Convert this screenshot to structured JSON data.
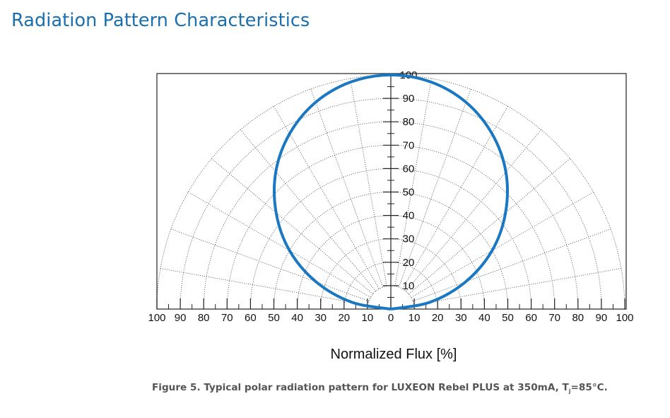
{
  "page": {
    "heading": "Radiation Pattern Characteristics",
    "caption_main": "Figure 5. Typical polar radiation pattern for LUXEON Rebel PLUS at 350mA, T",
    "caption_sub": "j",
    "caption_end": "=85°C."
  },
  "chart_data": {
    "type": "polar",
    "xlabel": "Normalized Flux [%]",
    "radial_range": [
      0,
      100
    ],
    "radial_ticks": [
      "10",
      "20",
      "30",
      "40",
      "50",
      "60",
      "70",
      "80",
      "90",
      "100"
    ],
    "x_ticks": [
      "100",
      "90",
      "80",
      "70",
      "60",
      "50",
      "40",
      "30",
      "20",
      "10",
      "0",
      "10",
      "20",
      "30",
      "40",
      "50",
      "60",
      "70",
      "80",
      "90",
      "100"
    ],
    "angle_range_deg": [
      -90,
      90
    ],
    "grid": true,
    "series": [
      {
        "color": "#1a78c2",
        "angles_deg": [
          -90,
          -80,
          -70,
          -60,
          -50,
          -40,
          -30,
          -20,
          -10,
          0,
          10,
          20,
          30,
          40,
          50,
          60,
          70,
          80,
          90
        ],
        "values": [
          0,
          17,
          34,
          50,
          64,
          76.5,
          86.5,
          94,
          98.5,
          100,
          98.5,
          94,
          86.5,
          76.5,
          64,
          50,
          34,
          17,
          0
        ]
      }
    ]
  }
}
